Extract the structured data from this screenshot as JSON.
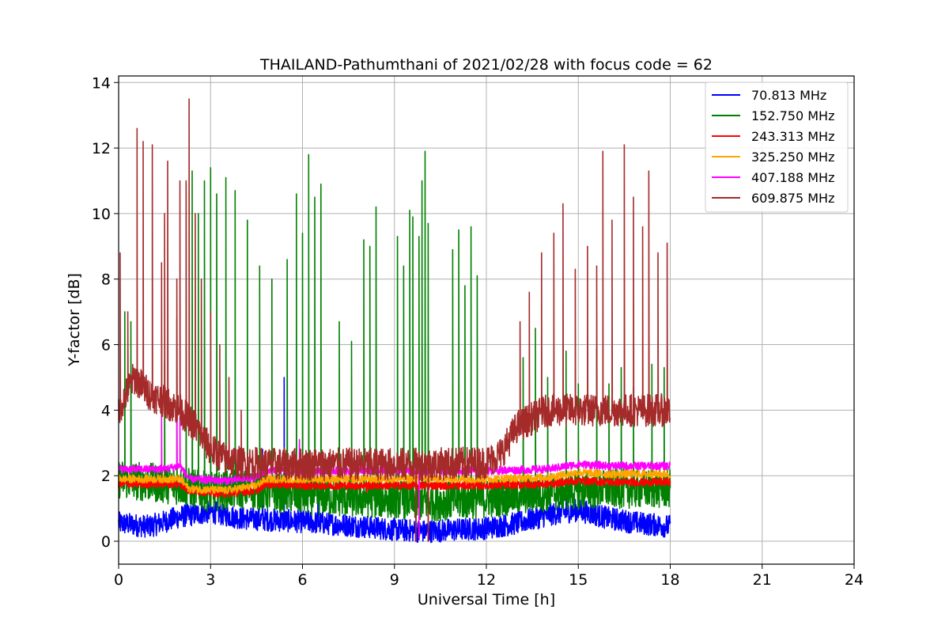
{
  "chart_data": {
    "type": "line",
    "title": "THAILAND-Pathumthani of 2021/02/28 with focus code = 62",
    "xlabel": "Universal Time [h]",
    "ylabel": "Y-factor [dB]",
    "xlim": [
      0,
      24
    ],
    "ylim": [
      -0.7,
      14.2
    ],
    "xticks": [
      0,
      3,
      6,
      9,
      12,
      15,
      18,
      21,
      24
    ],
    "yticks": [
      0,
      2,
      4,
      6,
      8,
      10,
      12,
      14
    ],
    "grid": true,
    "legend_position": "top-right",
    "series": [
      {
        "name": "70.813 MHz",
        "color": "#0000ff",
        "baseline": [
          [
            0,
            0.55
          ],
          [
            1,
            0.45
          ],
          [
            2,
            0.75
          ],
          [
            3,
            0.9
          ],
          [
            4,
            0.7
          ],
          [
            6,
            0.6
          ],
          [
            8,
            0.45
          ],
          [
            9,
            0.35
          ],
          [
            10,
            0.3
          ],
          [
            11,
            0.35
          ],
          [
            12,
            0.4
          ],
          [
            13,
            0.55
          ],
          [
            14,
            0.8
          ],
          [
            15,
            0.95
          ],
          [
            16,
            0.7
          ],
          [
            17,
            0.55
          ],
          [
            18,
            0.45
          ]
        ],
        "spikes": [
          [
            2.2,
            2.3
          ],
          [
            3.0,
            2.0
          ],
          [
            4.7,
            2.8
          ],
          [
            5.4,
            5.0
          ],
          [
            6.5,
            1.6
          ],
          [
            9.8,
            0.05
          ],
          [
            10.1,
            0.05
          ],
          [
            14.6,
            1.8
          ],
          [
            15.4,
            1.6
          ]
        ]
      },
      {
        "name": "152.750 MHz",
        "color": "#008000",
        "baseline": [
          [
            0,
            1.9
          ],
          [
            1,
            1.8
          ],
          [
            2,
            1.7
          ],
          [
            3,
            1.5
          ],
          [
            4,
            1.6
          ],
          [
            6,
            1.4
          ],
          [
            8,
            1.3
          ],
          [
            9,
            1.3
          ],
          [
            10,
            1.2
          ],
          [
            12,
            1.3
          ],
          [
            14,
            1.5
          ],
          [
            16,
            1.6
          ],
          [
            18,
            1.6
          ]
        ],
        "spikes": [
          [
            0.2,
            7.0
          ],
          [
            0.4,
            6.7
          ],
          [
            1.5,
            5.5
          ],
          [
            1.9,
            6.8
          ],
          [
            2.2,
            10.9
          ],
          [
            2.4,
            11.3
          ],
          [
            2.6,
            10.0
          ],
          [
            2.8,
            11.0
          ],
          [
            3.0,
            11.4
          ],
          [
            3.2,
            10.6
          ],
          [
            3.5,
            11.1
          ],
          [
            3.8,
            10.7
          ],
          [
            4.2,
            9.8
          ],
          [
            4.6,
            8.4
          ],
          [
            5.0,
            8.0
          ],
          [
            5.5,
            8.6
          ],
          [
            5.8,
            10.6
          ],
          [
            6.0,
            9.4
          ],
          [
            6.2,
            11.8
          ],
          [
            6.4,
            10.5
          ],
          [
            6.6,
            10.9
          ],
          [
            7.2,
            6.7
          ],
          [
            7.6,
            6.1
          ],
          [
            8.0,
            9.2
          ],
          [
            8.2,
            9.0
          ],
          [
            8.4,
            10.2
          ],
          [
            9.1,
            9.3
          ],
          [
            9.3,
            8.4
          ],
          [
            9.5,
            10.1
          ],
          [
            9.6,
            9.9
          ],
          [
            9.8,
            9.3
          ],
          [
            9.9,
            11.0
          ],
          [
            10.0,
            11.9
          ],
          [
            10.1,
            9.7
          ],
          [
            10.9,
            8.9
          ],
          [
            11.1,
            9.5
          ],
          [
            11.3,
            7.8
          ],
          [
            11.5,
            9.6
          ],
          [
            11.7,
            8.1
          ],
          [
            13.2,
            5.6
          ],
          [
            13.6,
            6.5
          ],
          [
            14.0,
            5.0
          ],
          [
            14.6,
            5.8
          ],
          [
            15.0,
            4.8
          ],
          [
            15.6,
            5.9
          ],
          [
            16.0,
            4.8
          ],
          [
            16.4,
            5.3
          ],
          [
            16.8,
            4.7
          ],
          [
            17.4,
            5.4
          ],
          [
            17.8,
            5.3
          ]
        ]
      },
      {
        "name": "243.313 MHz",
        "color": "#ff0000",
        "baseline": [
          [
            0,
            1.75
          ],
          [
            2,
            1.75
          ],
          [
            2.3,
            1.55
          ],
          [
            3.5,
            1.45
          ],
          [
            4.5,
            1.55
          ],
          [
            4.8,
            1.75
          ],
          [
            6,
            1.7
          ],
          [
            8,
            1.7
          ],
          [
            10,
            1.7
          ],
          [
            12,
            1.7
          ],
          [
            14,
            1.75
          ],
          [
            15,
            1.85
          ],
          [
            16,
            1.8
          ],
          [
            18,
            1.8
          ]
        ],
        "spikes": [
          [
            8.1,
            1.5
          ],
          [
            9.7,
            0.0
          ],
          [
            10.1,
            0.0
          ]
        ]
      },
      {
        "name": "325.250 MHz",
        "color": "#ffa500",
        "baseline": [
          [
            0,
            1.9
          ],
          [
            2,
            1.9
          ],
          [
            2.3,
            1.6
          ],
          [
            3.5,
            1.55
          ],
          [
            4.5,
            1.7
          ],
          [
            4.8,
            1.9
          ],
          [
            6,
            1.9
          ],
          [
            8,
            1.9
          ],
          [
            10,
            1.9
          ],
          [
            12,
            1.9
          ],
          [
            14,
            1.95
          ],
          [
            15,
            2.1
          ],
          [
            16,
            2.05
          ],
          [
            18,
            2.05
          ]
        ],
        "spikes": [
          [
            9.8,
            0.1
          ]
        ]
      },
      {
        "name": "407.188 MHz",
        "color": "#ff00ff",
        "baseline": [
          [
            0,
            2.2
          ],
          [
            1.5,
            2.2
          ],
          [
            2.0,
            2.3
          ],
          [
            2.3,
            1.9
          ],
          [
            3.5,
            1.85
          ],
          [
            4.5,
            1.95
          ],
          [
            4.8,
            2.15
          ],
          [
            6,
            2.15
          ],
          [
            8,
            2.15
          ],
          [
            10,
            2.15
          ],
          [
            12,
            2.15
          ],
          [
            14,
            2.2
          ],
          [
            15,
            2.35
          ],
          [
            16,
            2.3
          ],
          [
            18,
            2.3
          ]
        ],
        "spikes": [
          [
            1.4,
            3.8
          ],
          [
            1.9,
            3.7
          ],
          [
            2.0,
            3.8
          ],
          [
            5.9,
            3.1
          ],
          [
            9.8,
            0.1
          ]
        ]
      },
      {
        "name": "609.875 MHz",
        "color": "#a52a2a",
        "baseline": [
          [
            0,
            4.0
          ],
          [
            0.5,
            5.0
          ],
          [
            1.0,
            4.5
          ],
          [
            2.0,
            4.0
          ],
          [
            2.5,
            3.5
          ],
          [
            3.0,
            2.8
          ],
          [
            3.5,
            2.5
          ],
          [
            4.0,
            2.4
          ],
          [
            5.0,
            2.35
          ],
          [
            6,
            2.35
          ],
          [
            8,
            2.35
          ],
          [
            10,
            2.35
          ],
          [
            12,
            2.4
          ],
          [
            12.5,
            2.7
          ],
          [
            13,
            3.5
          ],
          [
            14,
            4.0
          ],
          [
            15,
            4.0
          ],
          [
            16,
            4.0
          ],
          [
            17,
            4.0
          ],
          [
            18,
            4.0
          ]
        ],
        "spikes": [
          [
            0.05,
            8.8
          ],
          [
            0.3,
            7.0
          ],
          [
            0.6,
            12.6
          ],
          [
            0.8,
            12.2
          ],
          [
            1.1,
            12.1
          ],
          [
            1.4,
            8.5
          ],
          [
            1.5,
            10.0
          ],
          [
            1.6,
            11.6
          ],
          [
            1.9,
            8.0
          ],
          [
            2.0,
            11.0
          ],
          [
            2.2,
            11.0
          ],
          [
            2.3,
            13.5
          ],
          [
            2.5,
            10.0
          ],
          [
            2.7,
            8.0
          ],
          [
            3.0,
            7.0
          ],
          [
            3.3,
            6.0
          ],
          [
            3.6,
            5.0
          ],
          [
            4.0,
            4.0
          ],
          [
            9.7,
            0.0
          ],
          [
            10.1,
            0.0
          ],
          [
            13.1,
            6.7
          ],
          [
            13.4,
            7.6
          ],
          [
            13.8,
            8.8
          ],
          [
            14.2,
            9.4
          ],
          [
            14.5,
            10.3
          ],
          [
            14.9,
            8.3
          ],
          [
            15.3,
            9.0
          ],
          [
            15.6,
            8.4
          ],
          [
            15.8,
            11.9
          ],
          [
            16.1,
            9.8
          ],
          [
            16.5,
            12.1
          ],
          [
            16.8,
            10.5
          ],
          [
            17.1,
            9.6
          ],
          [
            17.3,
            11.3
          ],
          [
            17.6,
            8.8
          ],
          [
            17.9,
            9.1
          ]
        ]
      }
    ]
  }
}
